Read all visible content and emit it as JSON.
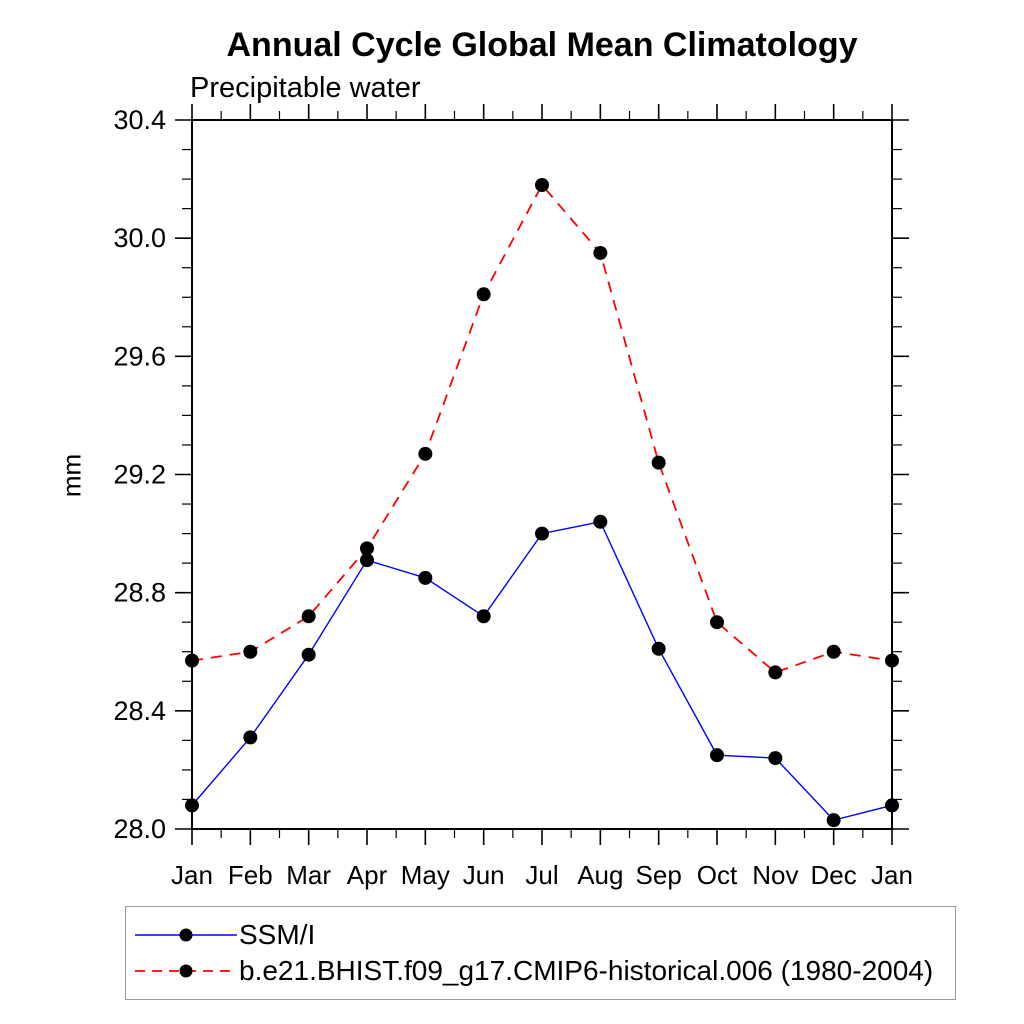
{
  "title": "Annual Cycle Global Mean Climatology",
  "subtitle": "Precipitable water",
  "chart_data": {
    "type": "line",
    "title": "Annual Cycle Global Mean Climatology",
    "subtitle": "Precipitable water",
    "xlabel": "",
    "ylabel": "mm",
    "x_tick_labels": [
      "Jan",
      "Feb",
      "Mar",
      "Apr",
      "May",
      "Jun",
      "Jul",
      "Aug",
      "Sep",
      "Oct",
      "Nov",
      "Dec",
      "Jan"
    ],
    "ylim": [
      28.0,
      30.4
    ],
    "y_major_step": 0.4,
    "y_minor_step": 0.1,
    "y_tick_labels": [
      "28.0",
      "28.4",
      "28.8",
      "29.2",
      "29.6",
      "30.0",
      "30.4"
    ],
    "grid": false,
    "legend_position": "bottom-left",
    "marker": "filled-circle",
    "marker_color": "#000000",
    "series": [
      {
        "name": "SSM/I",
        "color": "#0000ff",
        "line_style": "solid",
        "values": [
          28.08,
          28.31,
          28.59,
          28.91,
          28.85,
          28.72,
          29.0,
          29.04,
          28.61,
          28.25,
          28.24,
          28.03,
          28.08
        ]
      },
      {
        "name": "b.e21.BHIST.f09_g17.CMIP6-historical.006 (1980-2004)",
        "color": "#ff0000",
        "line_style": "dashed",
        "values": [
          28.57,
          28.6,
          28.72,
          28.95,
          29.27,
          29.81,
          30.18,
          29.95,
          29.24,
          28.7,
          28.53,
          28.6,
          28.57
        ]
      }
    ]
  }
}
